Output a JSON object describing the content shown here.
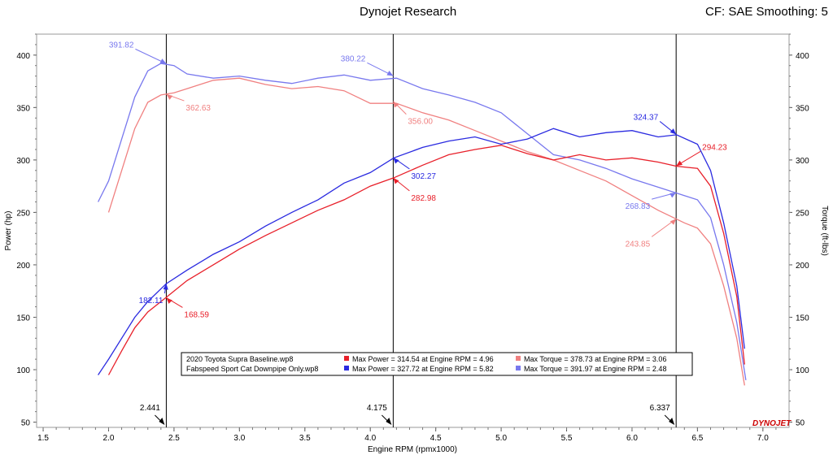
{
  "header": {
    "title": "Dynojet Research",
    "right": "CF: SAE Smoothing: 5"
  },
  "colors": {
    "base_power": "#e8202a",
    "base_torque": "#f08080",
    "fab_power": "#2a2ae0",
    "fab_torque": "#7878ee",
    "cursor": "#000000",
    "brand": "#cc0000"
  },
  "chart_data": {
    "type": "line",
    "xlabel": "Engine RPM (rpmx1000)",
    "ylabel_left": "Power (hp)",
    "ylabel_right": "Torque (ft-lbs)",
    "xlim": [
      1.45,
      7.2
    ],
    "ylim": [
      45,
      420
    ],
    "x_ticks": [
      "1.5",
      "2.0",
      "2.5",
      "3.0",
      "3.5",
      "4.0",
      "4.5",
      "5.0",
      "5.5",
      "6.0",
      "6.5",
      "7.0"
    ],
    "y_ticks": [
      "50",
      "100",
      "150",
      "200",
      "250",
      "300",
      "350",
      "400"
    ],
    "cursors": [
      {
        "rpm": 2.441,
        "label": "2.441"
      },
      {
        "rpm": 4.175,
        "label": "4.175"
      },
      {
        "rpm": 6.337,
        "label": "6.337"
      }
    ],
    "series": [
      {
        "key": "fab_torque",
        "x": [
          1.92,
          2.0,
          2.1,
          2.2,
          2.3,
          2.4,
          2.5,
          2.6,
          2.8,
          3.0,
          3.2,
          3.4,
          3.6,
          3.8,
          4.0,
          4.2,
          4.4,
          4.6,
          4.8,
          5.0,
          5.2,
          5.4,
          5.6,
          5.8,
          6.0,
          6.2,
          6.4,
          6.5,
          6.6,
          6.7,
          6.8,
          6.87
        ],
        "y": [
          260,
          280,
          320,
          360,
          385,
          392,
          390,
          382,
          378,
          380,
          376,
          373,
          378,
          381,
          376,
          378,
          368,
          362,
          355,
          345,
          325,
          305,
          300,
          292,
          282,
          274,
          266,
          262,
          245,
          200,
          145,
          90
        ]
      },
      {
        "key": "base_torque",
        "x": [
          2.0,
          2.1,
          2.2,
          2.3,
          2.4,
          2.5,
          2.6,
          2.8,
          3.0,
          3.2,
          3.4,
          3.6,
          3.8,
          3.9,
          4.0,
          4.2,
          4.4,
          4.6,
          4.8,
          5.0,
          5.2,
          5.4,
          5.6,
          5.8,
          6.0,
          6.2,
          6.4,
          6.5,
          6.6,
          6.7,
          6.8,
          6.86
        ],
        "y": [
          250,
          290,
          330,
          355,
          362,
          364,
          368,
          376,
          378,
          372,
          368,
          370,
          366,
          360,
          354,
          354,
          345,
          338,
          328,
          318,
          308,
          300,
          290,
          280,
          266,
          252,
          240,
          235,
          220,
          180,
          130,
          85
        ]
      },
      {
        "key": "fab_power",
        "x": [
          1.92,
          2.0,
          2.1,
          2.2,
          2.3,
          2.44,
          2.6,
          2.8,
          3.0,
          3.2,
          3.4,
          3.6,
          3.8,
          4.0,
          4.18,
          4.4,
          4.6,
          4.8,
          5.0,
          5.2,
          5.4,
          5.6,
          5.8,
          6.0,
          6.2,
          6.34,
          6.5,
          6.6,
          6.7,
          6.8,
          6.86
        ],
        "y": [
          95,
          110,
          130,
          150,
          165,
          182,
          195,
          210,
          222,
          237,
          250,
          262,
          278,
          288,
          302,
          312,
          318,
          322,
          315,
          320,
          330,
          322,
          326,
          328,
          322,
          324,
          315,
          290,
          240,
          180,
          120
        ]
      },
      {
        "key": "base_power",
        "x": [
          2.0,
          2.1,
          2.2,
          2.3,
          2.44,
          2.6,
          2.8,
          3.0,
          3.2,
          3.4,
          3.6,
          3.8,
          4.0,
          4.18,
          4.4,
          4.6,
          4.8,
          5.0,
          5.2,
          5.4,
          5.6,
          5.8,
          6.0,
          6.2,
          6.34,
          6.5,
          6.6,
          6.7,
          6.8,
          6.86
        ],
        "y": [
          95,
          118,
          140,
          155,
          169,
          185,
          200,
          215,
          228,
          240,
          252,
          262,
          275,
          283,
          295,
          305,
          310,
          314,
          306,
          300,
          305,
          300,
          302,
          298,
          294,
          292,
          275,
          230,
          170,
          105
        ]
      }
    ],
    "annotations": [
      {
        "series": "fab_torque",
        "rpm": 2.441,
        "value": 391.82,
        "text": "391.82"
      },
      {
        "series": "base_torque",
        "rpm": 2.441,
        "value": 362.63,
        "text": "362.63"
      },
      {
        "series": "fab_power",
        "rpm": 2.441,
        "value": 182.11,
        "text": "182.11"
      },
      {
        "series": "base_power",
        "rpm": 2.441,
        "value": 168.59,
        "text": "168.59"
      },
      {
        "series": "fab_torque",
        "rpm": 4.175,
        "value": 380.22,
        "text": "380.22"
      },
      {
        "series": "base_torque",
        "rpm": 4.175,
        "value": 356.0,
        "text": "356.00"
      },
      {
        "series": "fab_power",
        "rpm": 4.175,
        "value": 302.27,
        "text": "302.27"
      },
      {
        "series": "base_power",
        "rpm": 4.175,
        "value": 282.98,
        "text": "282.98"
      },
      {
        "series": "fab_power",
        "rpm": 6.337,
        "value": 324.37,
        "text": "324.37"
      },
      {
        "series": "base_power",
        "rpm": 6.337,
        "value": 294.23,
        "text": "294.23"
      },
      {
        "series": "fab_torque",
        "rpm": 6.337,
        "value": 268.83,
        "text": "268.83"
      },
      {
        "series": "base_torque",
        "rpm": 6.337,
        "value": 243.85,
        "text": "243.85"
      }
    ],
    "legend": {
      "rows": [
        {
          "run": "2020 Toyota Supra Baseline.wp8",
          "power_key": "base_power",
          "power": "Max Power = 314.54 at Engine RPM = 4.96",
          "torque_key": "base_torque",
          "torque": "Max Torque = 378.73 at Engine RPM = 3.06"
        },
        {
          "run": "Fabspeed Sport Cat Downpipe Only.wp8",
          "power_key": "fab_power",
          "power": "Max Power = 327.72 at Engine RPM = 5.82",
          "torque_key": "fab_torque",
          "torque": "Max Torque = 391.97 at Engine RPM = 2.48"
        }
      ]
    },
    "brand_mark": "DYNOJET"
  }
}
